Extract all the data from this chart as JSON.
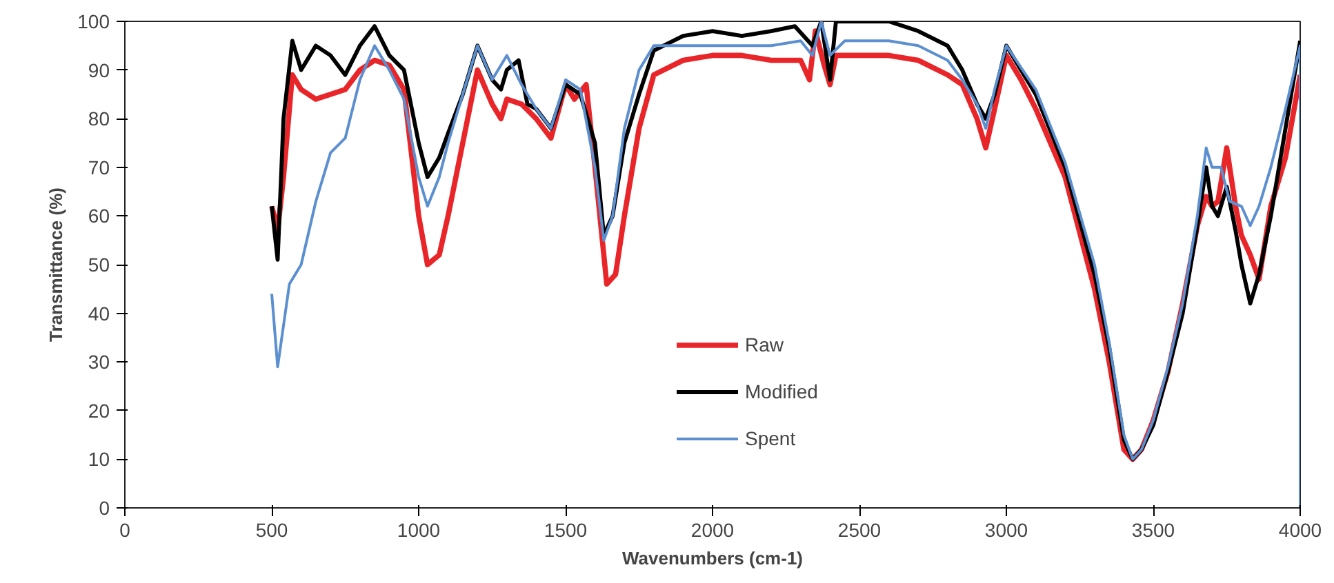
{
  "chart_data": {
    "type": "line",
    "xlabel": "Wavenumbers (cm-1)",
    "ylabel": "Transmittance (%)",
    "xlim": [
      0,
      4000
    ],
    "ylim": [
      0,
      100
    ],
    "xticks": [
      0,
      500,
      1000,
      1500,
      2000,
      2500,
      3000,
      3500,
      4000
    ],
    "yticks": [
      0,
      10,
      20,
      30,
      40,
      50,
      60,
      70,
      80,
      90,
      100
    ],
    "grid": false,
    "legend": "bottom",
    "marker": "none",
    "line_style": "solid",
    "series": [
      {
        "name": "Raw",
        "color": "#e8262a",
        "x": [
          500,
          520,
          540,
          570,
          600,
          650,
          700,
          750,
          800,
          850,
          900,
          950,
          1000,
          1030,
          1070,
          1100,
          1150,
          1200,
          1250,
          1280,
          1300,
          1350,
          1400,
          1450,
          1500,
          1530,
          1570,
          1600,
          1640,
          1670,
          1700,
          1750,
          1800,
          1900,
          2000,
          2100,
          2200,
          2300,
          2330,
          2350,
          2380,
          2400,
          2420,
          2500,
          2600,
          2700,
          2800,
          2850,
          2900,
          2930,
          2960,
          3000,
          3050,
          3100,
          3200,
          3300,
          3350,
          3400,
          3430,
          3460,
          3500,
          3550,
          3600,
          3650,
          3680,
          3700,
          3720,
          3750,
          3780,
          3800,
          3830,
          3860,
          3900,
          3950,
          4000
        ],
        "values": [
          62,
          57,
          68,
          89,
          86,
          84,
          85,
          86,
          90,
          92,
          91,
          86,
          60,
          50,
          52,
          60,
          75,
          90,
          83,
          80,
          84,
          83,
          80,
          76,
          87,
          84,
          87,
          70,
          46,
          48,
          60,
          78,
          89,
          92,
          93,
          93,
          92,
          92,
          88,
          98,
          91,
          87,
          93,
          93,
          93,
          92,
          89,
          87,
          80,
          74,
          82,
          93,
          88,
          82,
          68,
          45,
          30,
          12,
          10,
          12,
          18,
          28,
          42,
          58,
          64,
          62,
          63,
          74,
          62,
          56,
          52,
          47,
          62,
          72,
          89
        ]
      },
      {
        "name": "Modified",
        "color": "#000000",
        "x": [
          500,
          520,
          540,
          570,
          600,
          650,
          700,
          750,
          800,
          850,
          900,
          950,
          1000,
          1030,
          1070,
          1100,
          1150,
          1200,
          1250,
          1280,
          1300,
          1340,
          1370,
          1400,
          1450,
          1500,
          1550,
          1600,
          1630,
          1660,
          1700,
          1750,
          1800,
          1900,
          2000,
          2100,
          2200,
          2280,
          2340,
          2370,
          2400,
          2420,
          2500,
          2600,
          2700,
          2800,
          2850,
          2900,
          2930,
          2960,
          3000,
          3100,
          3200,
          3300,
          3350,
          3400,
          3430,
          3460,
          3500,
          3550,
          3600,
          3650,
          3680,
          3700,
          3720,
          3750,
          3780,
          3800,
          3830,
          3860,
          3900,
          3950,
          4000
        ],
        "values": [
          62,
          51,
          80,
          96,
          90,
          95,
          93,
          89,
          95,
          99,
          93,
          90,
          75,
          68,
          72,
          77,
          85,
          95,
          88,
          86,
          90,
          92,
          83,
          82,
          78,
          87,
          85,
          75,
          56,
          60,
          75,
          85,
          94,
          97,
          98,
          97,
          98,
          99,
          95,
          100,
          88,
          100,
          100,
          100,
          98,
          95,
          90,
          83,
          80,
          85,
          95,
          85,
          70,
          48,
          33,
          14,
          10,
          12,
          17,
          28,
          40,
          58,
          70,
          62,
          60,
          66,
          57,
          50,
          42,
          48,
          60,
          78,
          96
        ]
      },
      {
        "name": "Spent",
        "color": "#5b8fcf",
        "x": [
          500,
          520,
          560,
          600,
          650,
          700,
          750,
          800,
          850,
          900,
          950,
          1000,
          1030,
          1070,
          1100,
          1150,
          1200,
          1250,
          1300,
          1350,
          1400,
          1450,
          1500,
          1550,
          1600,
          1630,
          1660,
          1700,
          1750,
          1800,
          1900,
          2000,
          2100,
          2200,
          2300,
          2340,
          2370,
          2400,
          2450,
          2500,
          2600,
          2700,
          2800,
          2850,
          2900,
          2930,
          2960,
          3000,
          3100,
          3200,
          3300,
          3350,
          3400,
          3430,
          3460,
          3500,
          3550,
          3600,
          3650,
          3680,
          3700,
          3730,
          3760,
          3800,
          3830,
          3860,
          3900,
          3950,
          4000,
          4000
        ],
        "values": [
          44,
          29,
          46,
          50,
          63,
          73,
          76,
          88,
          95,
          90,
          84,
          68,
          62,
          68,
          75,
          85,
          95,
          88,
          93,
          87,
          82,
          78,
          88,
          86,
          70,
          55,
          60,
          78,
          90,
          95,
          95,
          95,
          95,
          95,
          96,
          93,
          100,
          93,
          96,
          96,
          96,
          95,
          92,
          88,
          83,
          78,
          86,
          95,
          86,
          71,
          50,
          34,
          15,
          10,
          12,
          18,
          29,
          42,
          60,
          74,
          70,
          70,
          63,
          62,
          58,
          62,
          70,
          82,
          95,
          0
        ]
      }
    ]
  }
}
